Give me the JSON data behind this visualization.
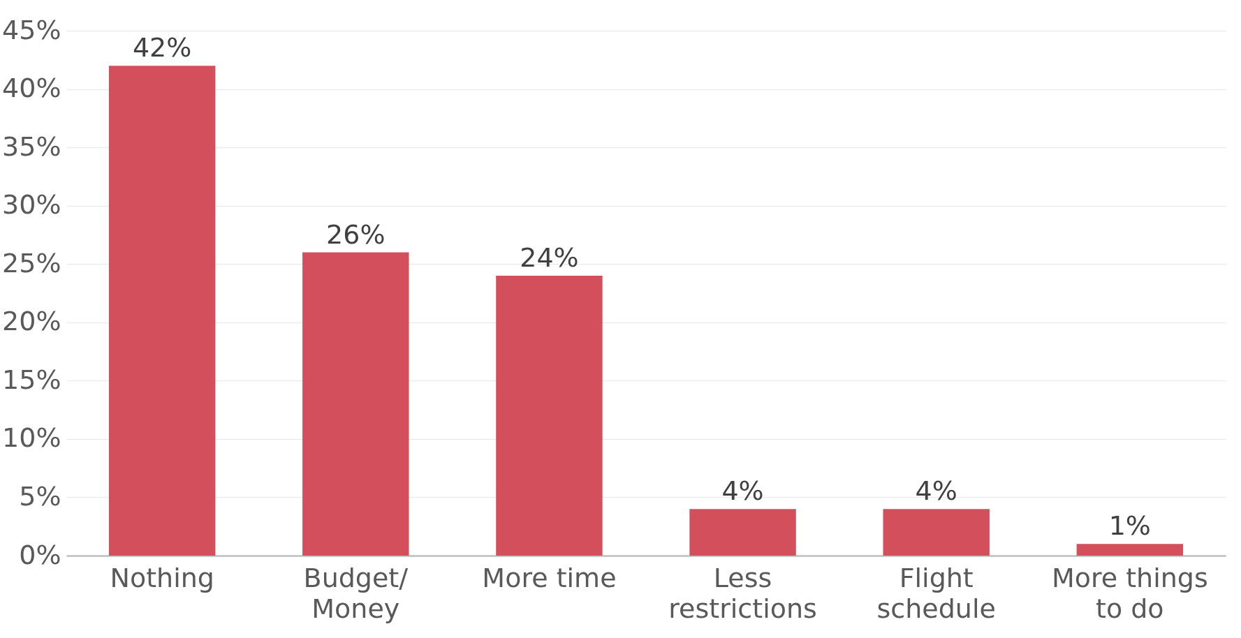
{
  "chart_data": {
    "type": "bar",
    "categories": [
      "Nothing",
      "Budget/\nMoney",
      "More time",
      "Less\nrestrictions",
      "Flight\nschedule",
      "More things\nto do"
    ],
    "values": [
      42,
      26,
      24,
      4,
      4,
      1
    ],
    "value_labels": [
      "42%",
      "26%",
      "24%",
      "4%",
      "4%",
      "1%"
    ],
    "color": "#d44f5c",
    "ylim": [
      0,
      45
    ],
    "yticks": [
      {
        "value": 0,
        "label": "0%"
      },
      {
        "value": 5,
        "label": "5%"
      },
      {
        "value": 10,
        "label": "10%"
      },
      {
        "value": 15,
        "label": "15%"
      },
      {
        "value": 20,
        "label": "20%"
      },
      {
        "value": 25,
        "label": "25%"
      },
      {
        "value": 30,
        "label": "30%"
      },
      {
        "value": 35,
        "label": "35%"
      },
      {
        "value": 40,
        "label": "40%"
      },
      {
        "value": 45,
        "label": "45%"
      }
    ],
    "grid": "y"
  }
}
